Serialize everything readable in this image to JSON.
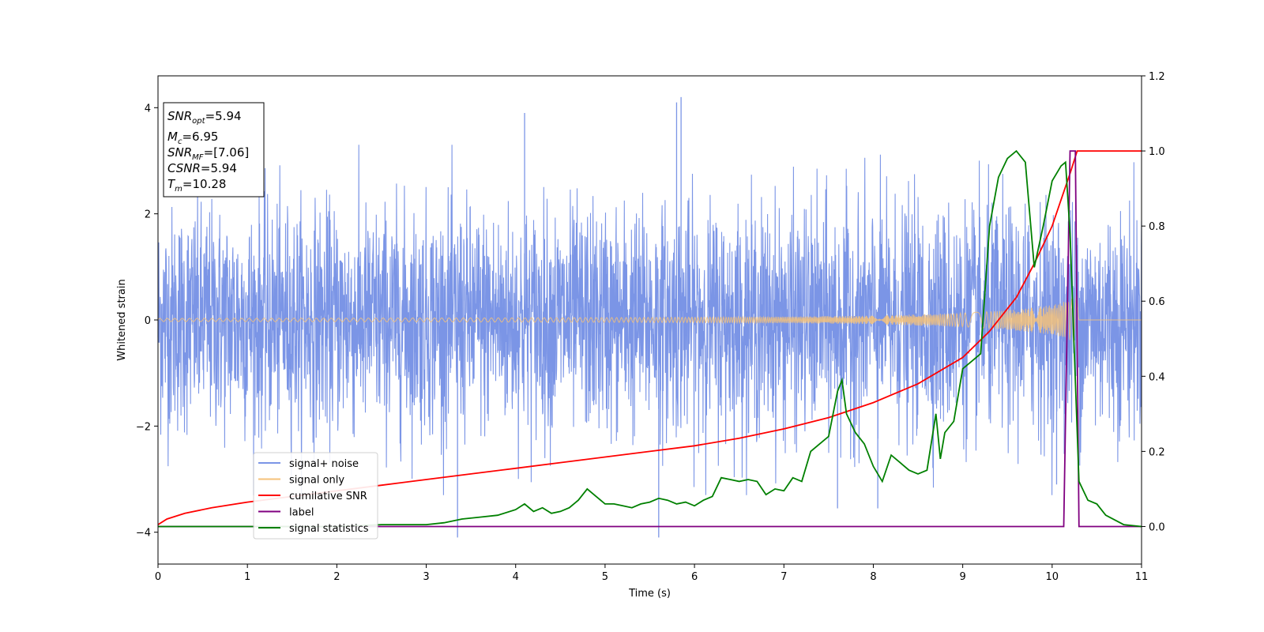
{
  "chart_data": {
    "type": "line",
    "xlabel": "Time (s)",
    "ylabel_left": "Whitened strain",
    "xlim": [
      0,
      11
    ],
    "ylim_left": [
      -4.6,
      4.6
    ],
    "ylim_right": [
      -0.1,
      1.2
    ],
    "x_ticks": [
      "0",
      "1",
      "2",
      "3",
      "4",
      "5",
      "6",
      "7",
      "8",
      "9",
      "10",
      "11"
    ],
    "y_left_ticks": [
      "-4",
      "-2",
      "0",
      "2",
      "4"
    ],
    "y_right_ticks": [
      "0.0",
      "0.2",
      "0.4",
      "0.6",
      "0.8",
      "1.0",
      "1.2"
    ],
    "grid": false,
    "legend_position": "lower-left",
    "info_box": [
      "SNR_opt=5.94",
      "M_c=6.95",
      "SNR_MF=[7.06]",
      "CSNR=5.94",
      "T_m=10.28"
    ],
    "series": [
      {
        "name": "signal+ noise",
        "axis": "left",
        "color": "#7b95e6",
        "description": "whitened noise samples with unit variance, peaks ~ +/-4",
        "noise_sigma": 1.05,
        "envelope": [
          [
            0,
            3.2
          ],
          [
            11,
            3.2
          ]
        ],
        "notable_peaks": [
          [
            3.35,
            -4.1
          ],
          [
            4.1,
            3.9
          ],
          [
            5.6,
            -4.1
          ],
          [
            5.85,
            4.2
          ],
          [
            5.8,
            4.1
          ],
          [
            7.6,
            -3.55
          ],
          [
            8.05,
            -3.55
          ],
          [
            10.05,
            -3.1
          ]
        ]
      },
      {
        "name": "signal only",
        "axis": "left",
        "color": "#f5c27a",
        "description": "chirp amplitude envelope growing toward merger",
        "envelope": [
          [
            0,
            0.03
          ],
          [
            2,
            0.035
          ],
          [
            4,
            0.04
          ],
          [
            6,
            0.05
          ],
          [
            7,
            0.06
          ],
          [
            8,
            0.08
          ],
          [
            9,
            0.13
          ],
          [
            9.5,
            0.18
          ],
          [
            10,
            0.28
          ],
          [
            10.2,
            0.38
          ],
          [
            10.28,
            0.48
          ],
          [
            10.3,
            0.0
          ],
          [
            11,
            0.0
          ]
        ]
      },
      {
        "name": "cumilative SNR",
        "axis": "right",
        "color": "#ff0000",
        "x": [
          0,
          0.1,
          0.3,
          0.6,
          1,
          1.5,
          2,
          2.5,
          3,
          3.5,
          4,
          4.5,
          5,
          5.5,
          6,
          6.5,
          7,
          7.5,
          8,
          8.5,
          9,
          9.3,
          9.6,
          9.8,
          10,
          10.1,
          10.2,
          10.28,
          11
        ],
        "y": [
          0.005,
          0.02,
          0.035,
          0.05,
          0.065,
          0.08,
          0.095,
          0.11,
          0.125,
          0.14,
          0.155,
          0.17,
          0.185,
          0.2,
          0.215,
          0.235,
          0.26,
          0.29,
          0.33,
          0.38,
          0.45,
          0.52,
          0.61,
          0.7,
          0.8,
          0.87,
          0.94,
          1.0,
          1.0
        ]
      },
      {
        "name": "label",
        "axis": "right",
        "color": "#800080",
        "x": [
          0,
          10.13,
          10.2,
          10.26,
          10.3,
          11
        ],
        "y": [
          0,
          0,
          1.0,
          1.0,
          0,
          0
        ]
      },
      {
        "name": "signal statistics",
        "axis": "right",
        "color": "#008000",
        "x": [
          0,
          0.5,
          1,
          1.5,
          2,
          2.5,
          2.8,
          3.0,
          3.2,
          3.4,
          3.6,
          3.8,
          4.0,
          4.1,
          4.2,
          4.3,
          4.4,
          4.5,
          4.6,
          4.7,
          4.8,
          4.9,
          5.0,
          5.1,
          5.2,
          5.3,
          5.4,
          5.5,
          5.6,
          5.7,
          5.8,
          5.9,
          6.0,
          6.1,
          6.2,
          6.3,
          6.4,
          6.5,
          6.6,
          6.7,
          6.8,
          6.9,
          7.0,
          7.1,
          7.2,
          7.3,
          7.4,
          7.5,
          7.6,
          7.65,
          7.7,
          7.8,
          7.9,
          8.0,
          8.1,
          8.2,
          8.3,
          8.4,
          8.5,
          8.6,
          8.7,
          8.75,
          8.8,
          8.9,
          9.0,
          9.1,
          9.2,
          9.3,
          9.4,
          9.5,
          9.6,
          9.7,
          9.8,
          9.9,
          10.0,
          10.1,
          10.15,
          10.2,
          10.3,
          10.4,
          10.5,
          10.6,
          10.8,
          11
        ],
        "y": [
          0.0,
          0.0,
          0.0,
          0.0,
          0.0,
          0.005,
          0.005,
          0.005,
          0.01,
          0.02,
          0.025,
          0.03,
          0.045,
          0.06,
          0.04,
          0.05,
          0.035,
          0.04,
          0.05,
          0.07,
          0.1,
          0.08,
          0.06,
          0.06,
          0.055,
          0.05,
          0.06,
          0.065,
          0.075,
          0.07,
          0.06,
          0.065,
          0.055,
          0.07,
          0.08,
          0.13,
          0.125,
          0.12,
          0.125,
          0.12,
          0.085,
          0.1,
          0.095,
          0.13,
          0.12,
          0.2,
          0.22,
          0.24,
          0.36,
          0.39,
          0.3,
          0.25,
          0.22,
          0.16,
          0.12,
          0.19,
          0.17,
          0.15,
          0.14,
          0.15,
          0.3,
          0.18,
          0.25,
          0.28,
          0.42,
          0.44,
          0.46,
          0.8,
          0.93,
          0.98,
          1.0,
          0.97,
          0.69,
          0.8,
          0.92,
          0.96,
          0.97,
          0.78,
          0.12,
          0.07,
          0.06,
          0.03,
          0.005,
          0.0
        ]
      }
    ]
  }
}
